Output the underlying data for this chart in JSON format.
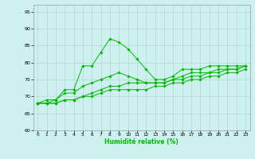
{
  "xlabel": "Humidité relative (%)",
  "background_color": "#cff0f0",
  "grid_color": "#aaddcc",
  "line_color": "#00bb00",
  "xlim": [
    -0.5,
    23.5
  ],
  "ylim": [
    60,
    97
  ],
  "yticks": [
    60,
    65,
    70,
    75,
    80,
    85,
    90,
    95
  ],
  "xticks": [
    0,
    1,
    2,
    3,
    4,
    5,
    6,
    7,
    8,
    9,
    10,
    11,
    12,
    13,
    14,
    15,
    16,
    17,
    18,
    19,
    20,
    21,
    22,
    23
  ],
  "series": [
    [
      68,
      69,
      69,
      72,
      72,
      79,
      79,
      83,
      87,
      86,
      84,
      81,
      78,
      75,
      75,
      76,
      78,
      78,
      78,
      79,
      79,
      79,
      79,
      79
    ],
    [
      68,
      68,
      69,
      71,
      71,
      73,
      74,
      75,
      76,
      77,
      76,
      75,
      74,
      74,
      74,
      75,
      76,
      77,
      77,
      77,
      78,
      78,
      78,
      79
    ],
    [
      68,
      68,
      68,
      69,
      69,
      70,
      70,
      71,
      72,
      72,
      72,
      72,
      72,
      73,
      73,
      74,
      74,
      75,
      75,
      76,
      76,
      77,
      77,
      78
    ],
    [
      68,
      68,
      68,
      69,
      69,
      70,
      71,
      72,
      73,
      73,
      74,
      74,
      74,
      74,
      74,
      75,
      75,
      76,
      76,
      77,
      77,
      78,
      78,
      79
    ]
  ]
}
